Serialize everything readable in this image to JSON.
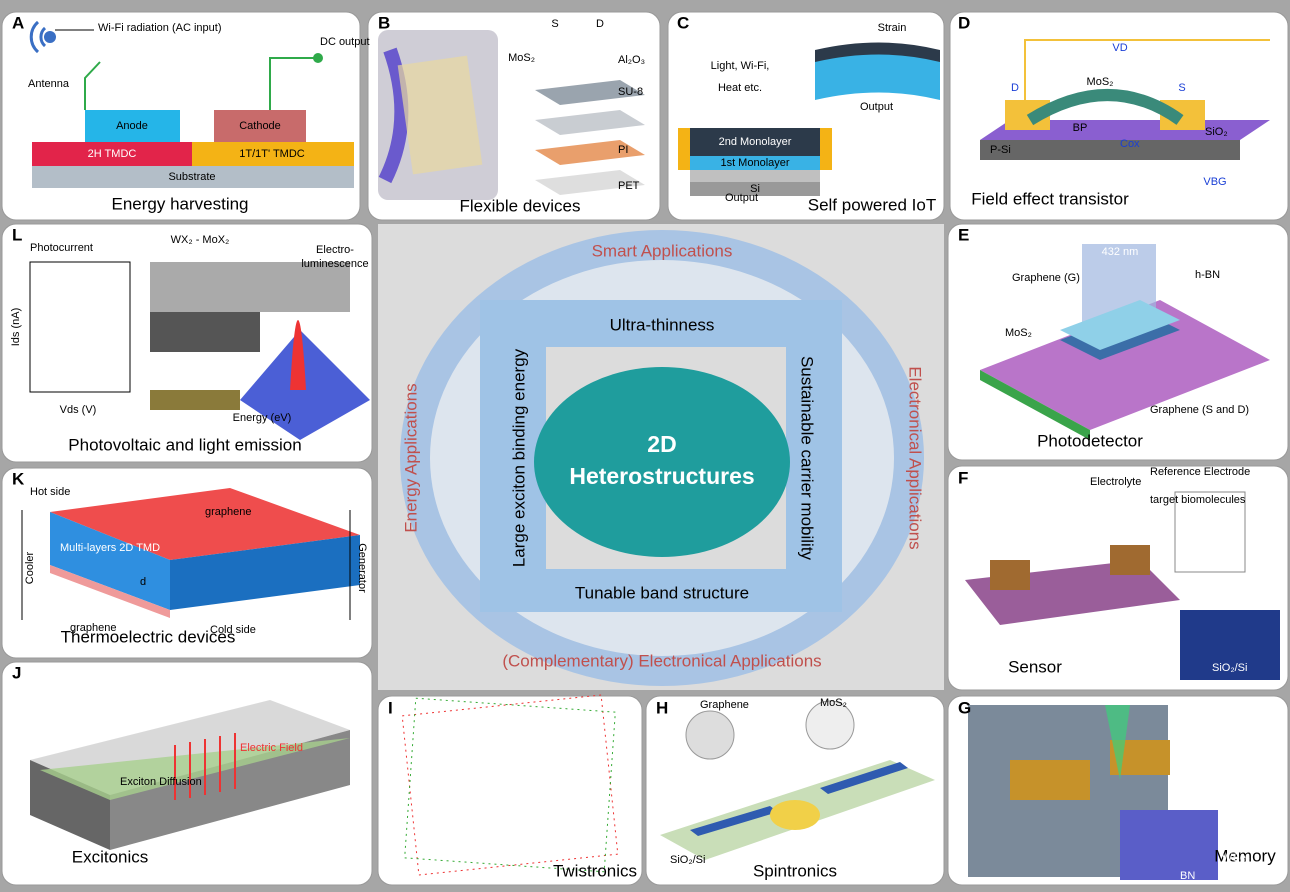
{
  "panels": [
    {
      "letter": "A",
      "caption": "Energy harvesting",
      "labels": [
        "Wi-Fi radiation (AC input)",
        "DC output",
        "Antenna",
        "Anode",
        "Cathode",
        "2H TMDC",
        "1T/1T' TMDC",
        "Substrate"
      ]
    },
    {
      "letter": "B",
      "caption": "Flexible devices",
      "labels": [
        "S",
        "D",
        "MoS₂",
        "Al₂O₃",
        "SU-8",
        "PI",
        "PET"
      ]
    },
    {
      "letter": "C",
      "caption": "Self powered IoT",
      "labels": [
        "Strain",
        "Light, Wi-Fi,",
        "Heat etc.",
        "Output",
        "Output",
        "2nd Monolayer",
        "1st Monolayer",
        "Si"
      ]
    },
    {
      "letter": "D",
      "caption": "Field effect transistor",
      "labels": [
        "VD",
        "MoS₂",
        "D",
        "S",
        "BP",
        "SiO₂",
        "P-Si",
        "Cox",
        "VBG"
      ]
    },
    {
      "letter": "E",
      "caption": "Photodetector",
      "labels": [
        "432 nm",
        "Graphene (G)",
        "h-BN",
        "MoS₂",
        "Graphene (S and D)"
      ]
    },
    {
      "letter": "F",
      "caption": "Sensor",
      "labels": [
        "Reference Electrode",
        "Electrolyte",
        "target biomolecules",
        "SiO₂/Si"
      ]
    },
    {
      "letter": "G",
      "caption": "Memory",
      "labels": [
        "WSe₂",
        "BN"
      ]
    },
    {
      "letter": "H",
      "caption": "Spintronics",
      "labels": [
        "Graphene",
        "MoS₂",
        "SiO₂/Si"
      ]
    },
    {
      "letter": "I",
      "caption": "Twistronics",
      "labels": []
    },
    {
      "letter": "J",
      "caption": "Excitonics",
      "labels": [
        "Electric Field",
        "Exciton Diffusion"
      ]
    },
    {
      "letter": "K",
      "caption": "Thermoelectric devices",
      "labels": [
        "Hot side",
        "graphene",
        "Multi-layers 2D TMD",
        "graphene",
        "Cold side",
        "Cooler",
        "Generator",
        "d"
      ]
    },
    {
      "letter": "L",
      "caption": "Photovoltaic and light emission",
      "labels": [
        "Photocurrent",
        "WX₂ - MoX₂",
        "Electro-",
        "luminescence",
        "Ids (nA)",
        "Vds (V)",
        "Energy (eV)"
      ]
    }
  ],
  "center": {
    "title": [
      "2D",
      "Heterostructures"
    ],
    "rings": [
      "Smart Applications",
      "Energy Applications",
      "Electronical Applications",
      "(Complementary) Electronical Applications"
    ],
    "properties": [
      "Ultra-thinness",
      "Large exciton binding energy",
      "Sustainable carrier mobility",
      "Tunable band structure"
    ]
  }
}
